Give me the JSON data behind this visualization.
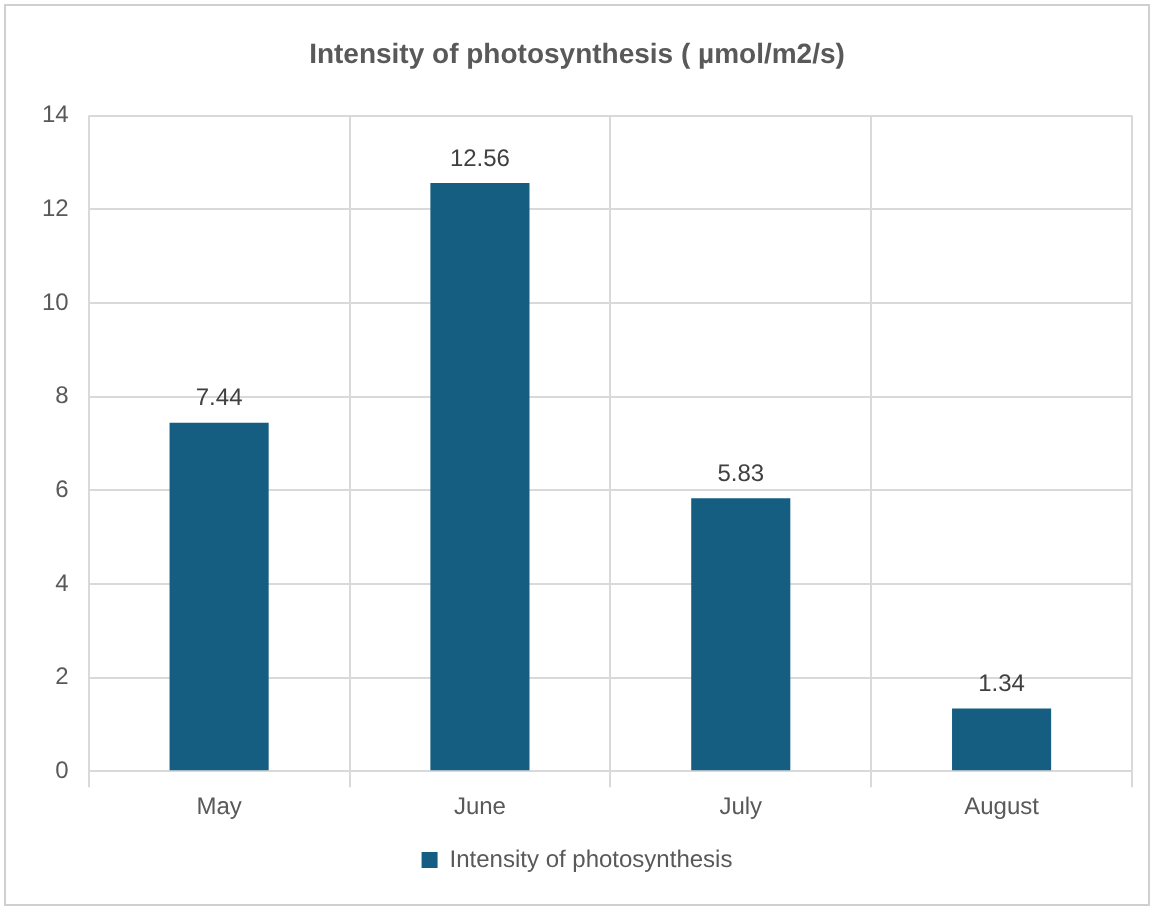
{
  "chart_data": {
    "type": "bar",
    "title": "Intensity of photosynthesis ( µmol/m2/s)",
    "categories": [
      "May",
      "June",
      "July",
      "August"
    ],
    "series": [
      {
        "name": "Intensity of photosynthesis",
        "color": "#155e82",
        "values": [
          7.44,
          12.56,
          5.83,
          1.34
        ]
      }
    ],
    "ylim": [
      0,
      14
    ],
    "yticks": [
      0,
      2,
      4,
      6,
      8,
      10,
      12,
      14
    ],
    "grid": true,
    "legend": "bottom",
    "data_labels": true
  }
}
